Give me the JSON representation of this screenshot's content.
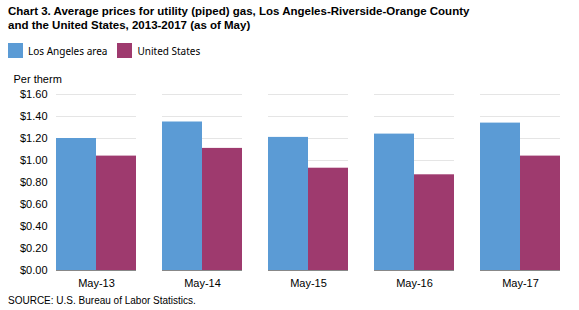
{
  "chart_data": {
    "type": "bar",
    "title": "Chart 3. Average prices for utility (piped) gas, Los Angeles-Riverside-Orange County\nand the United States, 2013-2017  (as of May)",
    "y_label": "Per therm",
    "source": "SOURCE: U.S. Bureau of Labor Statistics.",
    "categories": [
      "May-13",
      "May-14",
      "May-15",
      "May-16",
      "May-17"
    ],
    "series": [
      {
        "name": "Los Angeles area",
        "color": "#5B9BD5",
        "values": [
          1.2,
          1.35,
          1.21,
          1.24,
          1.34
        ]
      },
      {
        "name": "United States",
        "color": "#9E3A6E",
        "values": [
          1.04,
          1.11,
          0.93,
          0.87,
          1.04
        ]
      }
    ],
    "ylim": [
      0,
      1.6
    ],
    "yticks": [
      {
        "value": 0.0,
        "label": "$0.00"
      },
      {
        "value": 0.2,
        "label": "$0.20"
      },
      {
        "value": 0.4,
        "label": "$0.40"
      },
      {
        "value": 0.6,
        "label": "$0.60"
      },
      {
        "value": 0.8,
        "label": "$0.80"
      },
      {
        "value": 1.0,
        "label": "$1.00"
      },
      {
        "value": 1.2,
        "label": "$1.20"
      },
      {
        "value": 1.4,
        "label": "$1.40"
      },
      {
        "value": 1.6,
        "label": "$1.60"
      }
    ],
    "grid": true,
    "legend": "upper left"
  }
}
